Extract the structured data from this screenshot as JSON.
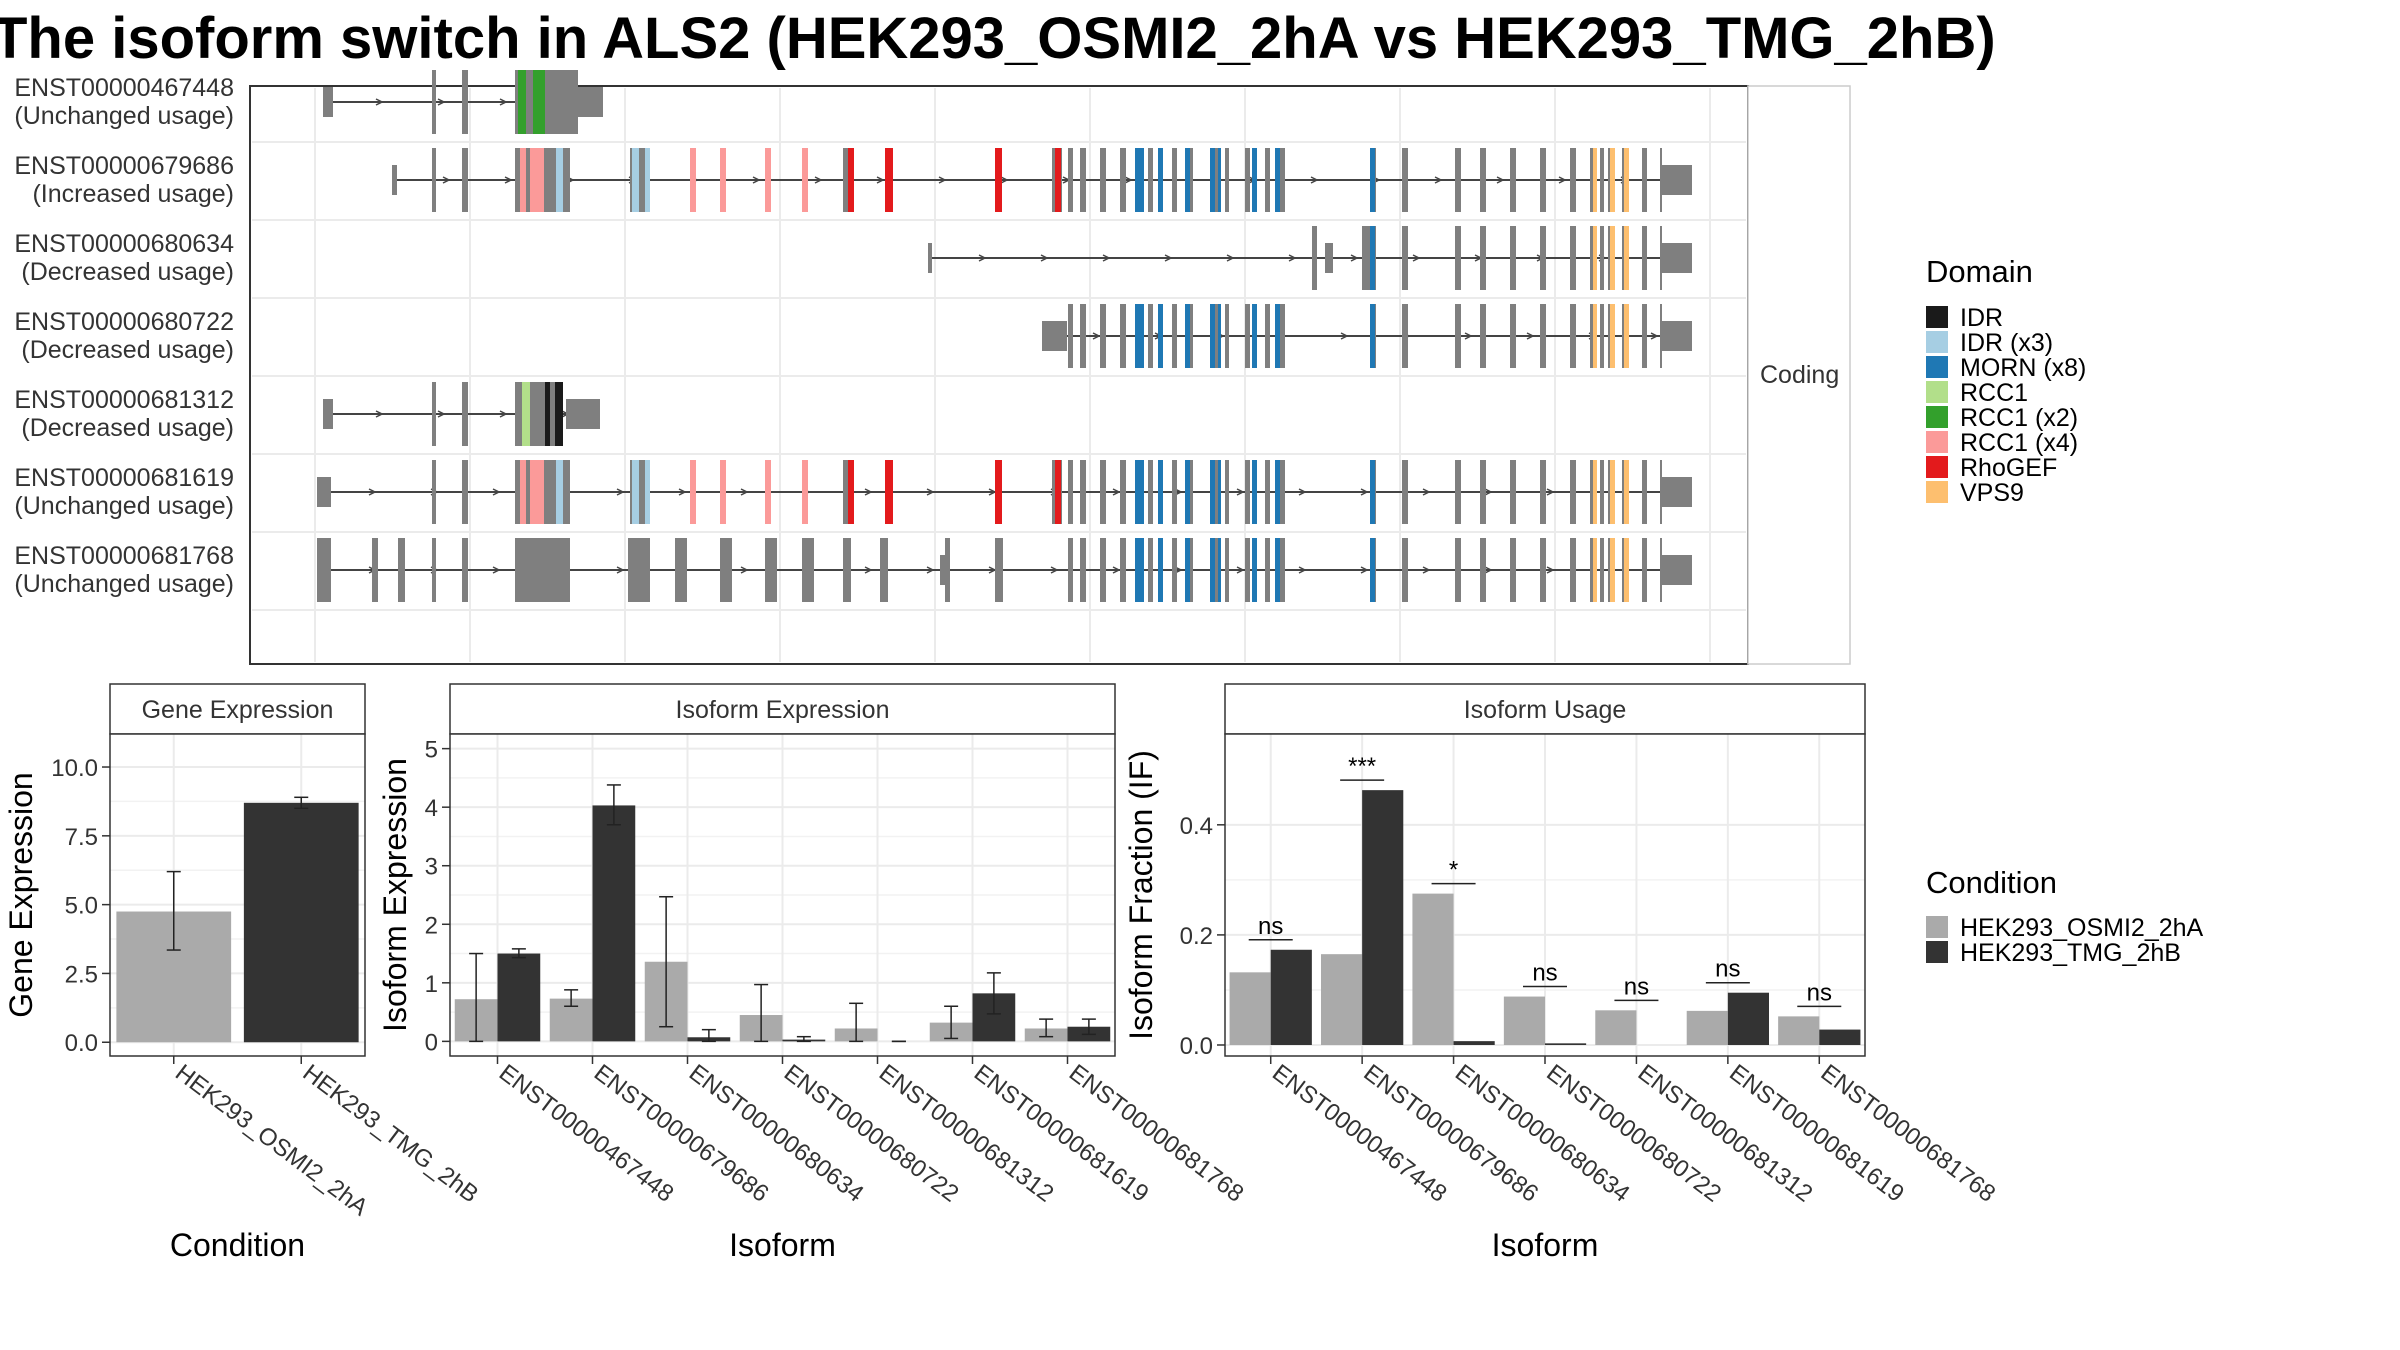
{
  "title": "The isoform switch in ALS2 (HEK293_OSMI2_2hA vs HEK293_TMG_2hB)",
  "facet_label": "Coding",
  "colors": {
    "cond_a": "#AAAAAA",
    "cond_b": "#333333",
    "exon": "#7F7F7F"
  },
  "domain_legend": {
    "title": "Domain",
    "items": [
      {
        "label": "IDR",
        "color": "#1A1A1A"
      },
      {
        "label": "IDR (x3)",
        "color": "#A6CEE3"
      },
      {
        "label": "MORN (x8)",
        "color": "#1F78B4"
      },
      {
        "label": "RCC1",
        "color": "#B2DF8A"
      },
      {
        "label": "RCC1 (x2)",
        "color": "#33A02C"
      },
      {
        "label": "RCC1 (x4)",
        "color": "#FB9A99"
      },
      {
        "label": "RhoGEF",
        "color": "#E31A1C"
      },
      {
        "label": "VPS9",
        "color": "#FDBF6F"
      }
    ]
  },
  "condition_legend": {
    "title": "Condition",
    "items": [
      {
        "label": "HEK293_OSMI2_2hA",
        "color": "#AAAAAA"
      },
      {
        "label": "HEK293_TMG_2hB",
        "color": "#333333"
      }
    ]
  },
  "transcripts": [
    {
      "id": "ENST00000467448",
      "usage": "(Unchanged usage)"
    },
    {
      "id": "ENST00000679686",
      "usage": "(Increased usage)"
    },
    {
      "id": "ENST00000680634",
      "usage": "(Decreased usage)"
    },
    {
      "id": "ENST00000680722",
      "usage": "(Decreased usage)"
    },
    {
      "id": "ENST00000681312",
      "usage": "(Decreased usage)"
    },
    {
      "id": "ENST00000681619",
      "usage": "(Unchanged usage)"
    },
    {
      "id": "ENST00000681768",
      "usage": "(Unchanged usage)"
    }
  ],
  "chart_data": [
    {
      "type": "bar",
      "panel": "Gene Expression",
      "xlabel": "Condition",
      "ylabel": "Gene Expression",
      "categories": [
        "HEK293_OSMI2_2hA",
        "HEK293_TMG_2hB"
      ],
      "values": [
        4.75,
        8.7
      ],
      "error_low": [
        3.35,
        8.5
      ],
      "error_high": [
        6.2,
        8.9
      ],
      "yticks": [
        0.0,
        2.5,
        5.0,
        7.5,
        10.0
      ],
      "yticklabels": [
        "0.0",
        "2.5",
        "5.0",
        "7.5",
        "10.0"
      ],
      "ylim": [
        -0.5,
        11.2
      ]
    },
    {
      "type": "bar",
      "panel": "Isoform Expression",
      "xlabel": "Isoform",
      "ylabel": "Isoform Expression",
      "categories": [
        "ENST00000467448",
        "ENST00000679686",
        "ENST00000680634",
        "ENST00000680722",
        "ENST00000681312",
        "ENST00000681619",
        "ENST00000681768"
      ],
      "series": [
        {
          "name": "HEK293_OSMI2_2hA",
          "values": [
            0.72,
            0.73,
            1.36,
            0.45,
            0.22,
            0.32,
            0.22
          ],
          "error_low": [
            0.0,
            0.6,
            0.25,
            0.0,
            0.0,
            0.05,
            0.08
          ],
          "error_high": [
            1.5,
            0.88,
            2.47,
            0.97,
            0.65,
            0.6,
            0.38
          ]
        },
        {
          "name": "HEK293_TMG_2hB",
          "values": [
            1.5,
            4.03,
            0.07,
            0.03,
            0.0,
            0.82,
            0.25
          ],
          "error_low": [
            1.43,
            3.7,
            0.0,
            0.0,
            0.0,
            0.47,
            0.12
          ],
          "error_high": [
            1.58,
            4.38,
            0.2,
            0.08,
            0.0,
            1.17,
            0.38
          ]
        }
      ],
      "yticks": [
        0,
        1,
        2,
        3,
        4,
        5
      ],
      "ylim": [
        -0.25,
        5.25
      ]
    },
    {
      "type": "bar",
      "panel": "Isoform Usage",
      "xlabel": "Isoform",
      "ylabel": "Isoform Fraction (IF)",
      "categories": [
        "ENST00000467448",
        "ENST00000679686",
        "ENST00000680634",
        "ENST00000680722",
        "ENST00000681312",
        "ENST00000681619",
        "ENST00000681768"
      ],
      "series": [
        {
          "name": "HEK293_OSMI2_2hA",
          "values": [
            0.132,
            0.165,
            0.275,
            0.088,
            0.063,
            0.062,
            0.052
          ]
        },
        {
          "name": "HEK293_TMG_2hB",
          "values": [
            0.173,
            0.463,
            0.007,
            0.003,
            0.0,
            0.095,
            0.028
          ]
        }
      ],
      "significance": [
        "ns",
        "***",
        "*",
        "ns",
        "ns",
        "ns",
        "ns"
      ],
      "yticks": [
        0.0,
        0.2,
        0.4
      ],
      "yticklabels": [
        "0.0",
        "0.2",
        "0.4"
      ],
      "ylim": [
        -0.02,
        0.565
      ]
    }
  ]
}
